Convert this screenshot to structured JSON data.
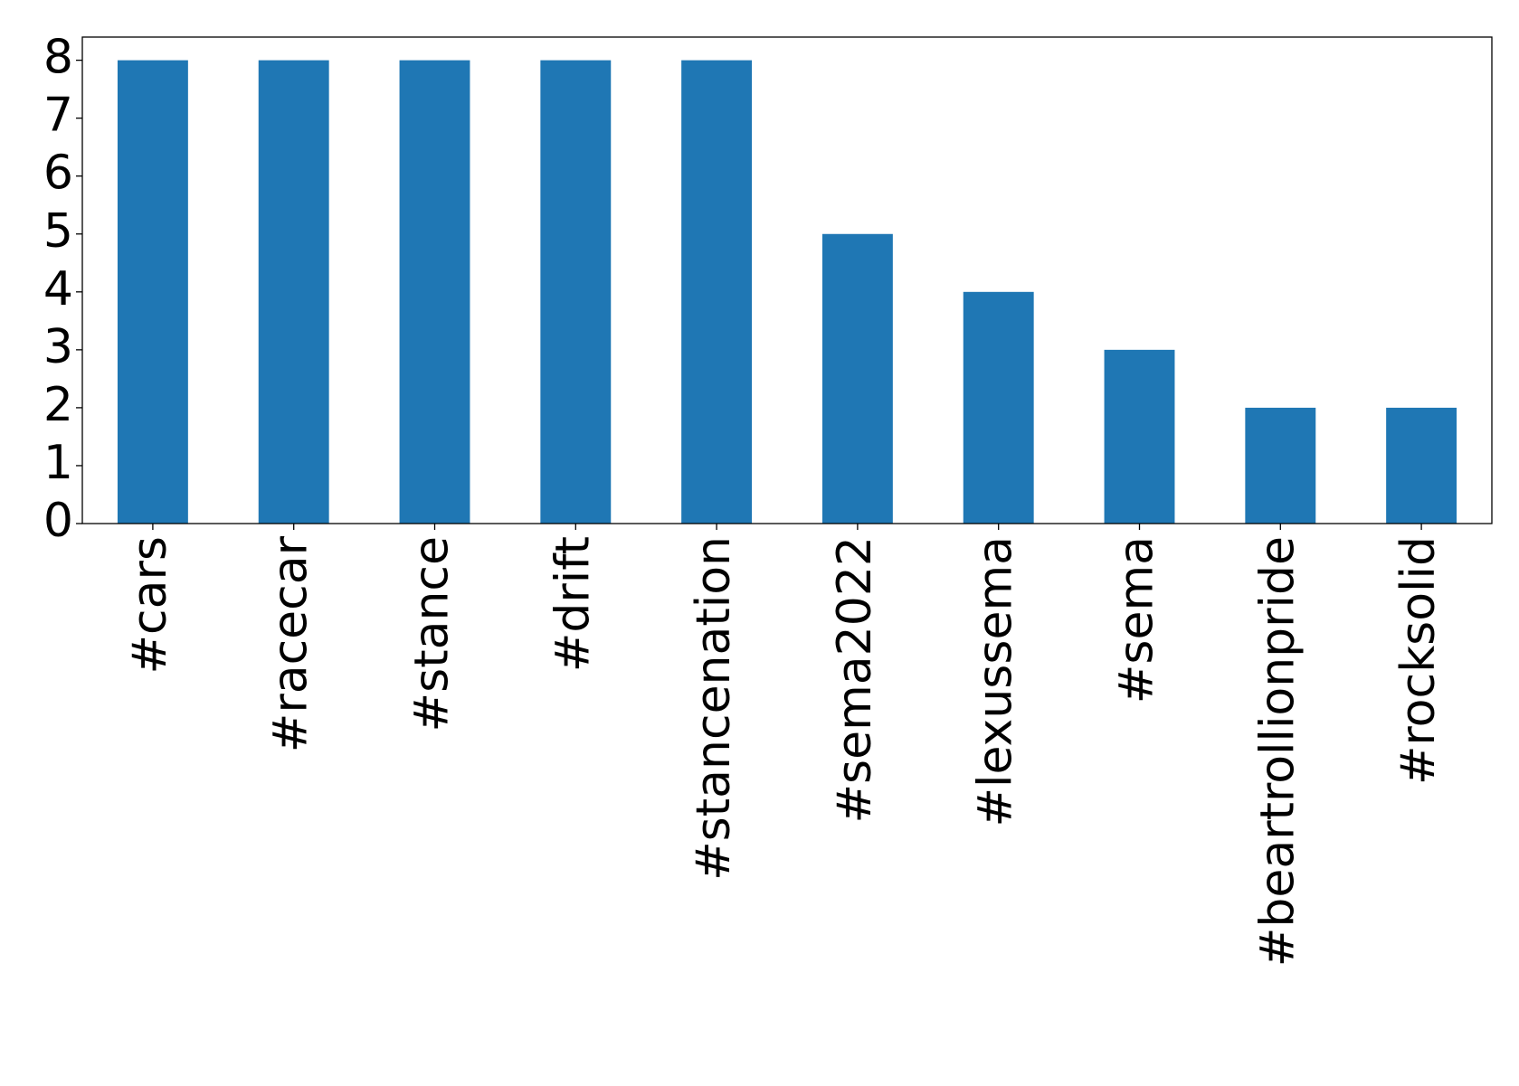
{
  "chart_data": {
    "type": "bar",
    "categories": [
      "#cars",
      "#racecar",
      "#stance",
      "#drift",
      "#stancenation",
      "#sema2022",
      "#lexussema",
      "#sema",
      "#beartrollionpride",
      "#rocksolid"
    ],
    "values": [
      8,
      8,
      8,
      8,
      8,
      5,
      4,
      3,
      2,
      2
    ],
    "color": "#1f77b4",
    "ylim": [
      0,
      8.4
    ],
    "yticks": [
      0,
      1,
      2,
      3,
      4,
      5,
      6,
      7,
      8
    ],
    "grid": false
  }
}
